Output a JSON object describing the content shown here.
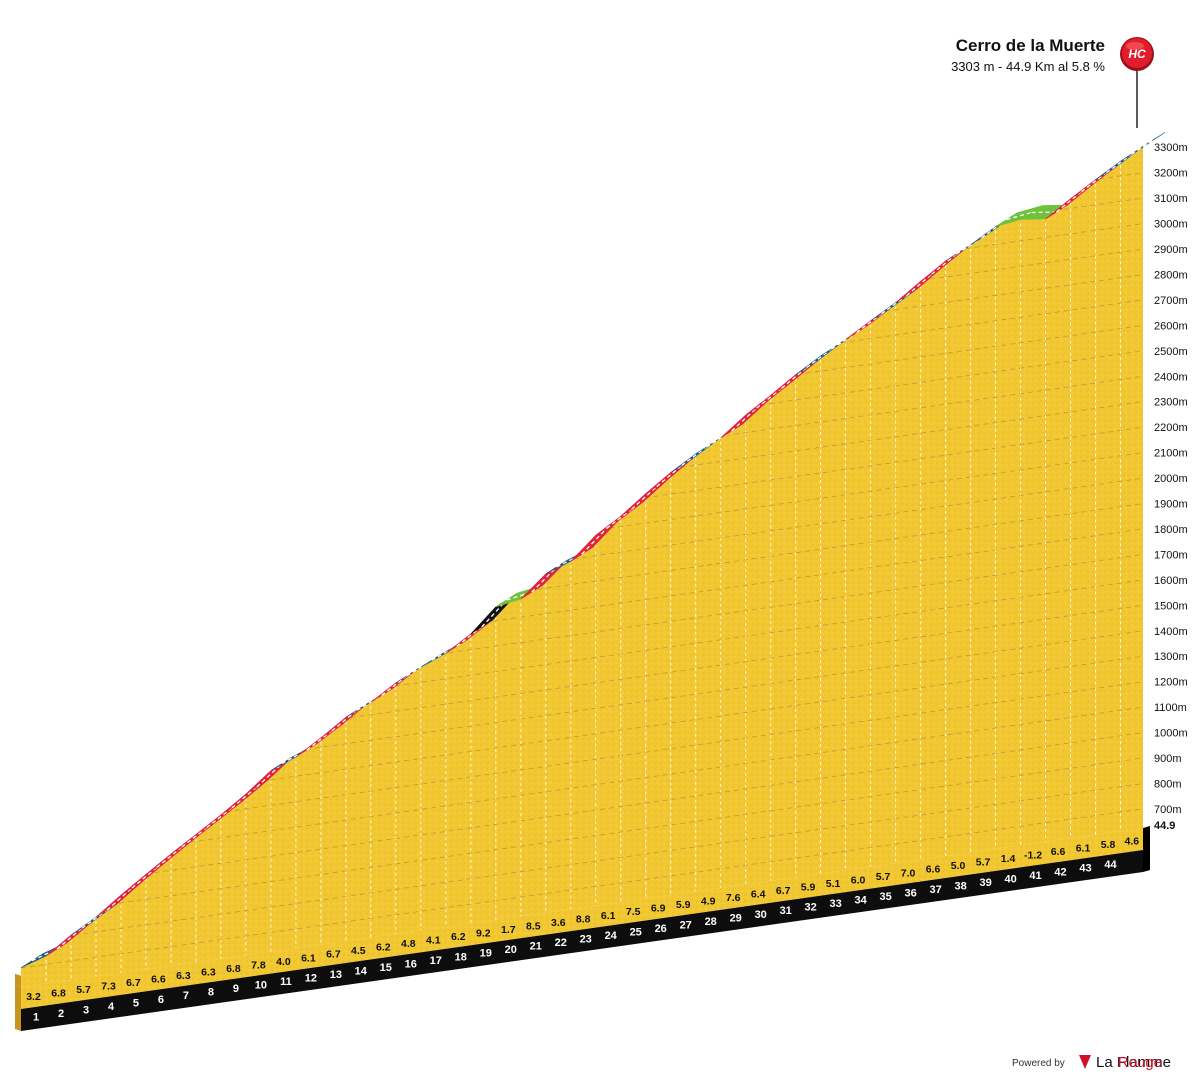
{
  "chart_data": {
    "type": "area",
    "title": "Cerro de la Muerte",
    "subtitle": "3303 m - 44.9 Km al 5.8 %",
    "category_badge": "HC",
    "total_distance_label": "44.9",
    "summit_elevation": 3303,
    "ylim": [
      625,
      3300
    ],
    "y_ticks": [
      {
        "value": 700,
        "label": "700m"
      },
      {
        "value": 800,
        "label": "800m"
      },
      {
        "value": 900,
        "label": "900m"
      },
      {
        "value": 1000,
        "label": "1000m"
      },
      {
        "value": 1100,
        "label": "1100m"
      },
      {
        "value": 1200,
        "label": "1200m"
      },
      {
        "value": 1300,
        "label": "1300m"
      },
      {
        "value": 1400,
        "label": "1400m"
      },
      {
        "value": 1500,
        "label": "1500m"
      },
      {
        "value": 1600,
        "label": "1600m"
      },
      {
        "value": 1700,
        "label": "1700m"
      },
      {
        "value": 1800,
        "label": "1800m"
      },
      {
        "value": 1900,
        "label": "1900m"
      },
      {
        "value": 2000,
        "label": "2000m"
      },
      {
        "value": 2100,
        "label": "2100m"
      },
      {
        "value": 2200,
        "label": "2200m"
      },
      {
        "value": 2300,
        "label": "2300m"
      },
      {
        "value": 2400,
        "label": "2400m"
      },
      {
        "value": 2500,
        "label": "2500m"
      },
      {
        "value": 2600,
        "label": "2600m"
      },
      {
        "value": 2700,
        "label": "2700m"
      },
      {
        "value": 2800,
        "label": "2800m"
      },
      {
        "value": 2900,
        "label": "2900m"
      },
      {
        "value": 3000,
        "label": "3000m"
      },
      {
        "value": 3100,
        "label": "3100m"
      },
      {
        "value": 3200,
        "label": "3200m"
      },
      {
        "value": 3300,
        "label": "3300m"
      }
    ],
    "km_labels": [
      "1",
      "2",
      "3",
      "4",
      "5",
      "6",
      "7",
      "8",
      "9",
      "10",
      "11",
      "12",
      "13",
      "14",
      "15",
      "16",
      "17",
      "18",
      "19",
      "20",
      "21",
      "22",
      "23",
      "24",
      "25",
      "26",
      "27",
      "28",
      "29",
      "30",
      "31",
      "32",
      "33",
      "34",
      "35",
      "36",
      "37",
      "38",
      "39",
      "40",
      "41",
      "42",
      "43",
      "44"
    ],
    "gradients": [
      3.2,
      6.8,
      5.7,
      7.3,
      6.7,
      6.6,
      6.3,
      6.3,
      6.8,
      7.8,
      4.0,
      6.1,
      6.7,
      4.5,
      6.2,
      4.8,
      4.1,
      6.2,
      9.2,
      1.7,
      8.5,
      3.6,
      8.8,
      6.1,
      7.5,
      6.9,
      5.9,
      4.9,
      7.6,
      6.4,
      6.7,
      5.9,
      5.1,
      6.0,
      5.7,
      7.0,
      6.6,
      5.0,
      5.7,
      1.4,
      -1.2,
      6.6,
      6.1,
      5.8,
      4.6
    ],
    "gradient_labels": [
      "3.2",
      "6.8",
      "5.7",
      "7.3",
      "6.7",
      "6.6",
      "6.3",
      "6.3",
      "6.8",
      "7.8",
      "4.0",
      "6.1",
      "6.7",
      "4.5",
      "6.2",
      "4.8",
      "4.1",
      "6.2",
      "9.2",
      "1.7",
      "8.5",
      "3.6",
      "8.8",
      "6.1",
      "7.5",
      "6.9",
      "5.9",
      "4.9",
      "7.6",
      "6.4",
      "6.7",
      "5.9",
      "5.1",
      "6.0",
      "5.7",
      "7.0",
      "6.6",
      "5.0",
      "5.7",
      "1.4",
      "-1.2",
      "6.6",
      "6.1",
      "5.8",
      "4.6"
    ],
    "segment_colors": {
      "green": "#6fc23a",
      "blue": "#1f5a8a",
      "red": "#e0223e",
      "black": "#111111"
    },
    "fill_color": "#f2c832",
    "base_color": "#c7951e"
  },
  "footer": {
    "powered_by": "Powered by",
    "brand_part1": "La Flamme",
    "brand_part2": "Rouge"
  }
}
